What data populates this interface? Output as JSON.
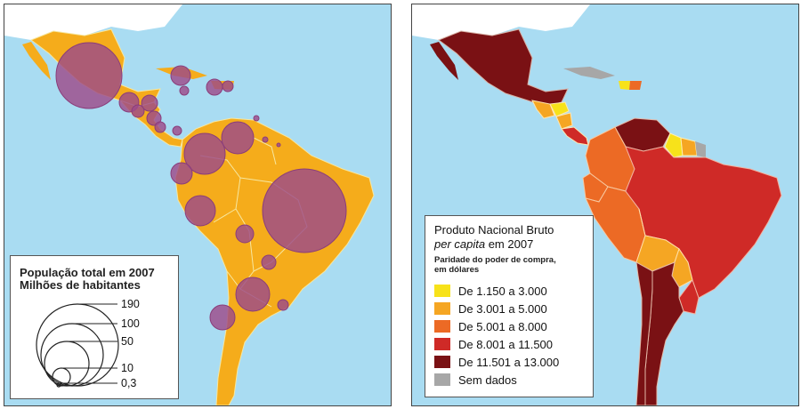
{
  "left_map": {
    "legend": {
      "title": "População total em 2007",
      "subtitle": "Milhões de habitantes",
      "circle_values": [
        "190",
        "100",
        "50",
        "10",
        "0,3"
      ]
    },
    "colors": {
      "ocean": "#a9dcf2",
      "land": "#f5ac1b",
      "bubble": "#9c4a8a",
      "border": "#f6e7a0"
    }
  },
  "right_map": {
    "legend": {
      "title_line1": "Produto Nacional Bruto",
      "title_italic": "per capita",
      "title_rest": " em 2007",
      "note_line1": "Paridade do poder de compra,",
      "note_line2": "em dólares",
      "classes": [
        {
          "label": "De 1.150 a 3.000",
          "color": "#f7e21a"
        },
        {
          "label": "De 3.001 a 5.000",
          "color": "#f5a623"
        },
        {
          "label": "De 5.001 a 8.000",
          "color": "#ec6a25"
        },
        {
          "label": "De 8.001 a 11.500",
          "color": "#cf2a27"
        },
        {
          "label": "De 11.501 a 13.000",
          "color": "#7a1114"
        },
        {
          "label": "Sem dados",
          "color": "#a7a7a7"
        }
      ]
    }
  }
}
